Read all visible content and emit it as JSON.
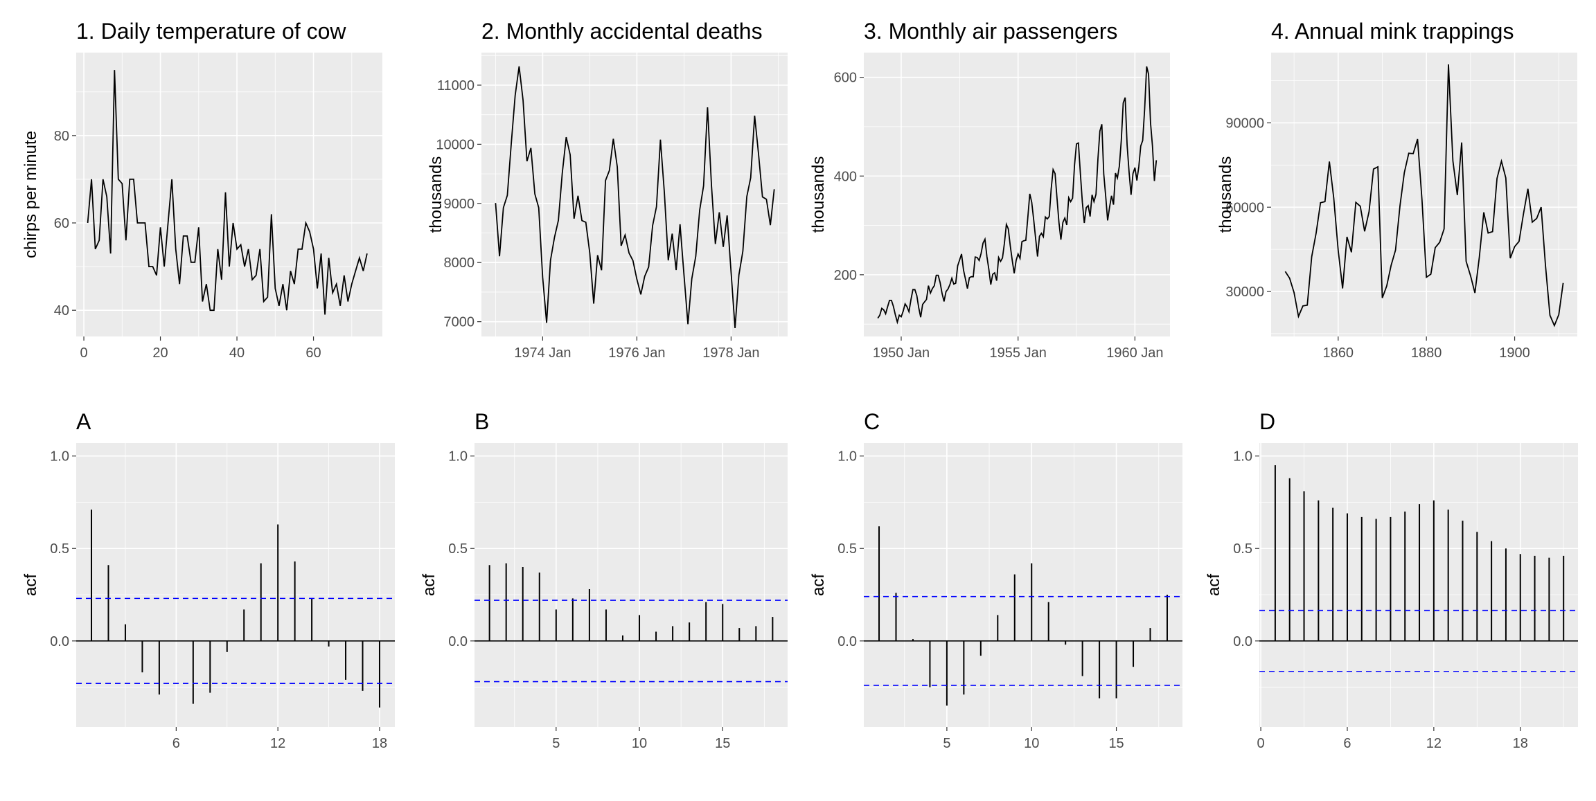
{
  "chart_data": [
    {
      "id": "p1",
      "type": "line",
      "title": "1. Daily temperature of cow",
      "xlabel": "",
      "ylabel": "chirps per minute",
      "x_ticks": [
        {
          "v": 0,
          "label": "0"
        },
        {
          "v": 20,
          "label": "20"
        },
        {
          "v": 40,
          "label": "40"
        },
        {
          "v": 60,
          "label": "60"
        }
      ],
      "y_ticks": [
        {
          "v": 40,
          "label": "40"
        },
        {
          "v": 60,
          "label": "60"
        },
        {
          "v": 80,
          "label": "80"
        }
      ],
      "xlim": [
        -2,
        78
      ],
      "ylim": [
        34,
        99
      ],
      "grid": true,
      "series": [
        {
          "x_start": 1,
          "x_step": 1,
          "y": [
            60,
            70,
            54,
            56,
            70,
            66,
            53,
            95,
            70,
            69,
            56,
            70,
            70,
            60,
            60,
            60,
            50,
            50,
            48,
            59,
            50,
            60,
            70,
            54,
            46,
            57,
            57,
            51,
            51,
            59,
            42,
            46,
            40,
            40,
            54,
            47,
            67,
            50,
            60,
            54,
            55,
            50,
            54,
            47,
            48,
            54,
            42,
            43,
            62,
            45,
            41,
            46,
            40,
            49,
            46,
            54,
            54,
            60,
            58,
            54,
            45,
            53,
            39,
            52,
            44,
            46,
            41,
            48,
            42,
            46,
            49,
            52,
            49,
            53
          ]
        }
      ]
    },
    {
      "id": "p2",
      "type": "line",
      "title": "2. Monthly accidental deaths",
      "xlabel": "",
      "ylabel": "thousands",
      "x_ticks": [
        {
          "v": 1974,
          "label": "1974 Jan"
        },
        {
          "v": 1976,
          "label": "1976 Jan"
        },
        {
          "v": 1978,
          "label": "1978 Jan"
        }
      ],
      "y_ticks": [
        {
          "v": 7000,
          "label": "7000"
        },
        {
          "v": 8000,
          "label": "8000"
        },
        {
          "v": 9000,
          "label": "9000"
        },
        {
          "v": 10000,
          "label": "10000"
        },
        {
          "v": 11000,
          "label": "11000"
        }
      ],
      "xlim": [
        1972.7,
        1979.2
      ],
      "ylim": [
        6750,
        11550
      ],
      "grid": true,
      "series": [
        {
          "x_start": 1973.0,
          "x_step": 0.0833333,
          "y": [
            9007,
            8106,
            8928,
            9137,
            10017,
            10826,
            11317,
            10744,
            9713,
            9938,
            9161,
            8927,
            7750,
            6981,
            8038,
            8422,
            8714,
            9512,
            10120,
            9823,
            8743,
            9129,
            8710,
            8680,
            8162,
            7306,
            8124,
            7870,
            9387,
            9556,
            10093,
            9620,
            8285,
            8466,
            8160,
            8034,
            7717,
            7461,
            7767,
            7925,
            8623,
            8945,
            10078,
            9179,
            8037,
            8488,
            7874,
            8647,
            7792,
            6957,
            7726,
            8106,
            8890,
            9299,
            10625,
            9302,
            8314,
            8850,
            8265,
            8796,
            7836,
            6892,
            7791,
            8192,
            9115,
            9434,
            10484,
            9827,
            9110,
            9070,
            8633,
            9240
          ]
        }
      ]
    },
    {
      "id": "p3",
      "type": "line",
      "title": "3. Monthly air passengers",
      "xlabel": "",
      "ylabel": "thousands",
      "x_ticks": [
        {
          "v": 1950,
          "label": "1950 Jan"
        },
        {
          "v": 1955,
          "label": "1955 Jan"
        },
        {
          "v": 1960,
          "label": "1960 Jan"
        }
      ],
      "y_ticks": [
        {
          "v": 200,
          "label": "200"
        },
        {
          "v": 400,
          "label": "400"
        },
        {
          "v": 600,
          "label": "600"
        }
      ],
      "xlim": [
        1948.4,
        1961.5
      ],
      "ylim": [
        75,
        650
      ],
      "grid": true,
      "series": [
        {
          "x_start": 1949.0,
          "x_step": 0.0833333,
          "y": [
            112,
            118,
            132,
            129,
            121,
            135,
            148,
            148,
            136,
            119,
            104,
            118,
            115,
            126,
            141,
            135,
            125,
            149,
            170,
            170,
            158,
            133,
            114,
            140,
            145,
            150,
            178,
            163,
            172,
            178,
            199,
            199,
            184,
            162,
            146,
            166,
            171,
            180,
            193,
            181,
            183,
            218,
            230,
            242,
            209,
            191,
            172,
            194,
            196,
            196,
            236,
            235,
            229,
            243,
            264,
            272,
            237,
            211,
            180,
            201,
            204,
            188,
            235,
            227,
            234,
            264,
            302,
            293,
            259,
            229,
            203,
            229,
            242,
            233,
            267,
            269,
            270,
            315,
            364,
            347,
            312,
            274,
            237,
            278,
            284,
            277,
            317,
            313,
            318,
            374,
            413,
            405,
            355,
            306,
            271,
            306,
            315,
            301,
            356,
            348,
            355,
            422,
            465,
            467,
            404,
            347,
            305,
            336,
            340,
            318,
            362,
            348,
            363,
            435,
            491,
            505,
            404,
            359,
            310,
            337,
            360,
            342,
            406,
            396,
            420,
            472,
            548,
            559,
            463,
            407,
            362,
            405,
            417,
            391,
            419,
            461,
            472,
            535,
            622,
            606,
            508,
            461,
            390,
            432
          ]
        }
      ]
    },
    {
      "id": "p4",
      "type": "line",
      "title": "4. Annual mink trappings",
      "xlabel": "",
      "ylabel": "thousands",
      "x_ticks": [
        {
          "v": 1860,
          "label": "1860"
        },
        {
          "v": 1880,
          "label": "1880"
        },
        {
          "v": 1900,
          "label": "1900"
        }
      ],
      "y_ticks": [
        {
          "v": 30000,
          "label": "30000"
        },
        {
          "v": 60000,
          "label": "60000"
        },
        {
          "v": 90000,
          "label": "90000"
        }
      ],
      "xlim": [
        1844.8,
        1914.2
      ],
      "ylim": [
        14000,
        115000
      ],
      "grid": true,
      "series": [
        {
          "x_start": 1848,
          "x_step": 1,
          "y": [
            37123,
            34712,
            29619,
            21151,
            24859,
            25152,
            42375,
            50839,
            61581,
            61951,
            76231,
            63264,
            44730,
            31094,
            49452,
            43961,
            61727,
            60334,
            51404,
            58451,
            73575,
            74343,
            27708,
            31985,
            39266,
            44740,
            60429,
            72273,
            79214,
            79060,
            84244,
            62590,
            35072,
            36160,
            45600,
            47508,
            52290,
            110824,
            76503,
            64303,
            83023,
            40748,
            35596,
            29479,
            42264,
            58171,
            50815,
            51285,
            70229,
            76365,
            70407,
            41839,
            45978,
            47813,
            57620,
            66549,
            54673,
            55996,
            60053,
            39169,
            21534,
            17857,
            21788,
            33008
          ]
        }
      ]
    },
    {
      "id": "A",
      "type": "bar",
      "title": "A",
      "xlabel": "",
      "ylabel": "acf",
      "x_ticks": [
        {
          "v": 6,
          "label": "6"
        },
        {
          "v": 12,
          "label": "12"
        },
        {
          "v": 18,
          "label": "18"
        }
      ],
      "y_ticks": [
        {
          "v": 0.0,
          "label": "0.0"
        },
        {
          "v": 0.5,
          "label": "0.5"
        },
        {
          "v": 1.0,
          "label": "1.0"
        }
      ],
      "xlim": [
        0.1,
        18.9
      ],
      "ylim": [
        -0.465,
        1.07
      ],
      "conf": 0.23,
      "grid": true,
      "lags": [
        1,
        2,
        3,
        4,
        5,
        6,
        7,
        8,
        9,
        10,
        11,
        12,
        13,
        14,
        15,
        16,
        17,
        18
      ],
      "values": [
        0.71,
        0.41,
        0.09,
        -0.17,
        -0.29,
        0.0,
        -0.34,
        -0.28,
        -0.06,
        0.17,
        0.42,
        0.63,
        0.43,
        0.23,
        -0.03,
        -0.21,
        -0.27,
        -0.36
      ]
    },
    {
      "id": "B",
      "type": "bar",
      "title": "B",
      "xlabel": "",
      "ylabel": "acf",
      "x_ticks": [
        {
          "v": 5,
          "label": "5"
        },
        {
          "v": 10,
          "label": "10"
        },
        {
          "v": 15,
          "label": "15"
        }
      ],
      "y_ticks": [
        {
          "v": 0.0,
          "label": "0.0"
        },
        {
          "v": 0.5,
          "label": "0.5"
        },
        {
          "v": 1.0,
          "label": "1.0"
        }
      ],
      "xlim": [
        0.1,
        18.9
      ],
      "ylim": [
        -0.465,
        1.07
      ],
      "conf": 0.22,
      "grid": true,
      "lags": [
        1,
        2,
        3,
        4,
        5,
        6,
        7,
        8,
        9,
        10,
        11,
        12,
        13,
        14,
        15,
        16,
        17,
        18
      ],
      "values": [
        0.41,
        0.42,
        0.4,
        0.37,
        0.17,
        0.23,
        0.28,
        0.17,
        0.03,
        0.14,
        0.05,
        0.08,
        0.1,
        0.21,
        0.2,
        0.07,
        0.08,
        0.13
      ]
    },
    {
      "id": "C",
      "type": "bar",
      "title": "C",
      "xlabel": "",
      "ylabel": "acf",
      "x_ticks": [
        {
          "v": 5,
          "label": "5"
        },
        {
          "v": 10,
          "label": "10"
        },
        {
          "v": 15,
          "label": "15"
        }
      ],
      "y_ticks": [
        {
          "v": 0.0,
          "label": "0.0"
        },
        {
          "v": 0.5,
          "label": "0.5"
        },
        {
          "v": 1.0,
          "label": "1.0"
        }
      ],
      "xlim": [
        0.1,
        18.9
      ],
      "ylim": [
        -0.465,
        1.07
      ],
      "conf": 0.24,
      "grid": true,
      "lags": [
        1,
        2,
        3,
        4,
        5,
        6,
        7,
        8,
        9,
        10,
        11,
        12,
        13,
        14,
        15,
        16,
        17,
        18
      ],
      "values": [
        0.62,
        0.26,
        0.01,
        -0.25,
        -0.35,
        -0.29,
        -0.08,
        0.14,
        0.36,
        0.42,
        0.21,
        -0.02,
        -0.19,
        -0.31,
        -0.31,
        -0.14,
        0.07,
        0.25
      ]
    },
    {
      "id": "D",
      "type": "bar",
      "title": "D",
      "xlabel": "",
      "ylabel": "acf",
      "x_ticks": [
        {
          "v": 0,
          "label": "0"
        },
        {
          "v": 6,
          "label": "6"
        },
        {
          "v": 12,
          "label": "12"
        },
        {
          "v": 18,
          "label": "18"
        }
      ],
      "y_ticks": [
        {
          "v": 0.0,
          "label": "0.0"
        },
        {
          "v": 0.5,
          "label": "0.5"
        },
        {
          "v": 1.0,
          "label": "1.0"
        }
      ],
      "xlim": [
        -0.1,
        22.0
      ],
      "ylim": [
        -0.465,
        1.07
      ],
      "conf": 0.165,
      "grid": true,
      "lags": [
        1,
        2,
        3,
        4,
        5,
        6,
        7,
        8,
        9,
        10,
        11,
        12,
        13,
        14,
        15,
        16,
        17,
        18,
        19,
        20,
        21
      ],
      "values": [
        0.95,
        0.88,
        0.81,
        0.76,
        0.72,
        0.69,
        0.67,
        0.66,
        0.67,
        0.7,
        0.74,
        0.76,
        0.71,
        0.65,
        0.59,
        0.54,
        0.5,
        0.47,
        0.46,
        0.45,
        0.46
      ]
    }
  ]
}
